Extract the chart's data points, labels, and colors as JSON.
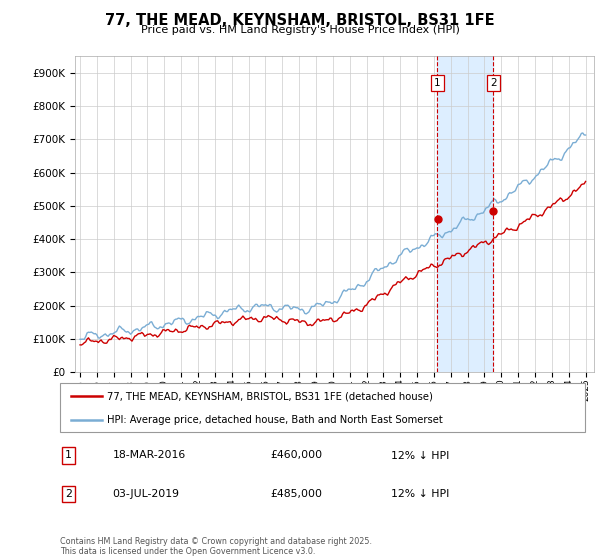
{
  "title": "77, THE MEAD, KEYNSHAM, BRISTOL, BS31 1FE",
  "subtitle": "Price paid vs. HM Land Registry's House Price Index (HPI)",
  "legend_line1": "77, THE MEAD, KEYNSHAM, BRISTOL, BS31 1FE (detached house)",
  "legend_line2": "HPI: Average price, detached house, Bath and North East Somerset",
  "sale1_date": "18-MAR-2016",
  "sale1_price": "£460,000",
  "sale1_hpi": "12% ↓ HPI",
  "sale2_date": "03-JUL-2019",
  "sale2_price": "£485,000",
  "sale2_hpi": "12% ↓ HPI",
  "copyright": "Contains HM Land Registry data © Crown copyright and database right 2025.\nThis data is licensed under the Open Government Licence v3.0.",
  "sale1_year": 2016.21,
  "sale2_year": 2019.51,
  "red_color": "#cc0000",
  "blue_color": "#7aadd4",
  "shade_color": "#ddeeff",
  "background_color": "#ffffff",
  "grid_color": "#cccccc",
  "ylim": [
    0,
    950000
  ],
  "xlim": [
    1994.7,
    2025.5
  ]
}
